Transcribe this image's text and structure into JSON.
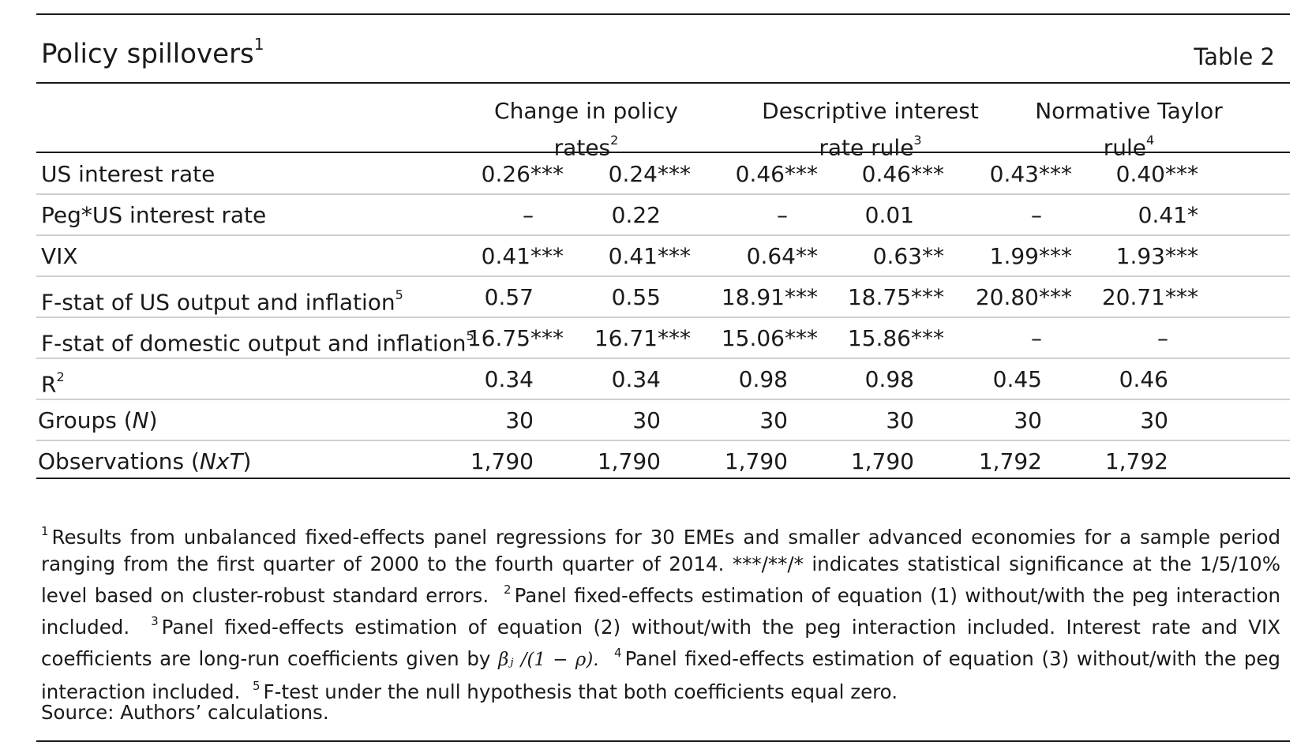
{
  "table": {
    "title": "Policy spillovers",
    "title_sup": "1",
    "number": "Table 2",
    "column_groups": [
      {
        "label": "Change in policy rates",
        "sup": "2"
      },
      {
        "label": "Descriptive interest rate rule",
        "sup": "3"
      },
      {
        "label": "Normative Taylor rule",
        "sup": "4"
      }
    ],
    "rows": [
      {
        "label": "US interest rate",
        "sup": "",
        "values": [
          "0.26***",
          "0.24***",
          "0.46***",
          "0.46***",
          "0.43***",
          "0.40***"
        ]
      },
      {
        "label": "Peg*US interest rate",
        "sup": "",
        "values": [
          "–",
          "0.22",
          "–",
          "0.01",
          "–",
          "0.41*"
        ]
      },
      {
        "label": "VIX",
        "sup": "",
        "values": [
          "0.41***",
          "0.41***",
          "0.64**",
          "0.63**",
          "1.99***",
          "1.93***"
        ]
      },
      {
        "label": "F-stat of US output and inflation",
        "sup": "5",
        "values": [
          "0.57",
          "0.55",
          "18.91***",
          "18.75***",
          "20.80***",
          "20.71***"
        ]
      },
      {
        "label": "F-stat of domestic output and inflation",
        "sup": "5",
        "values": [
          "16.75***",
          "16.71***",
          "15.06***",
          "15.86***",
          "–",
          "–"
        ]
      },
      {
        "label": "R",
        "sup": "2",
        "values": [
          "0.34",
          "0.34",
          "0.98",
          "0.98",
          "0.45",
          "0.46"
        ]
      },
      {
        "label_pre": "Groups (",
        "label_it": "N",
        "label_post": ")",
        "values": [
          "30",
          "30",
          "30",
          "30",
          "30",
          "30"
        ]
      },
      {
        "label_pre": "Observations (",
        "label_it": "NxT",
        "label_post": ")",
        "values": [
          "1,790",
          "1,790",
          "1,790",
          "1,790",
          "1,792",
          "1,792"
        ]
      }
    ]
  },
  "notes": {
    "n1_sup": "1",
    "n1": "Results from unbalanced fixed-effects panel regressions for 30 EMEs and smaller advanced economies for a sample period ranging from the first quarter of 2000 to the fourth quarter of 2014. ***/**/* indicates statistical significance at the 1/5/10% level based on cluster-robust standard errors.",
    "n2_sup": "2",
    "n2": "Panel fixed-effects estimation of equation (1) without/with the peg interaction included.",
    "n3_sup": "3",
    "n3a": "Panel fixed-effects estimation of equation (2) without/with the peg interaction included. Interest rate and VIX coefficients are long-run coefficients given by",
    "n3_math": "βⱼ /(1 − ρ).",
    "n4_sup": "4",
    "n4": "Panel fixed-effects estimation of equation (3) without/with the peg interaction included.",
    "n5_sup": "5",
    "n5": "F-test under the null hypothesis that both coefficients equal zero.",
    "source": "Source: Authors’ calculations."
  }
}
